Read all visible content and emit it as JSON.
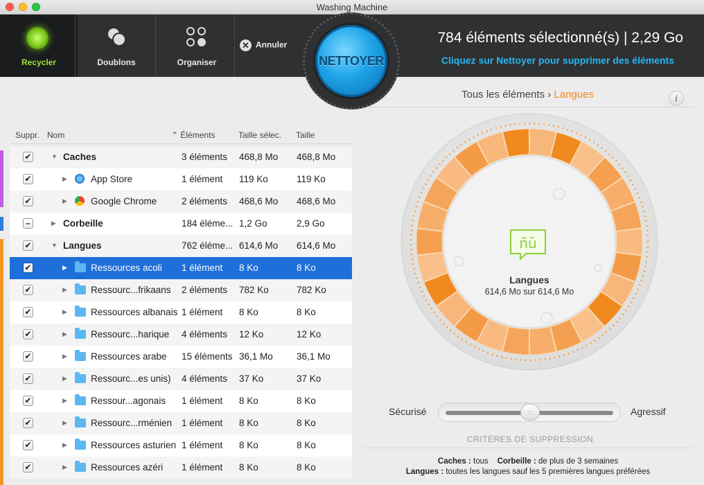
{
  "window": {
    "title": "Washing Machine"
  },
  "toolbar": {
    "recycle_label": "Recycler",
    "duplicates_label": "Doublons",
    "organize_label": "Organiser",
    "cancel_label": "Annuler",
    "clean_label": "NETTOYER"
  },
  "summary": {
    "selected": "784 éléments sélectionné(s) | 2,29 Go",
    "hint": "Cliquez sur Nettoyer pour supprimer des éléments"
  },
  "table": {
    "headers": {
      "delete": "Suppr.",
      "name": "Nom",
      "items": "Éléments",
      "selected_size": "Taille sélec.",
      "size": "Taille"
    },
    "rows": [
      {
        "name": "Caches",
        "items": "3 éléments",
        "sel": "468,8 Mo",
        "size": "468,8 Mo",
        "check": "✔"
      },
      {
        "name": "App Store",
        "items": "1 élément",
        "sel": "119 Ko",
        "size": "119 Ko",
        "check": "✔"
      },
      {
        "name": "Google Chrome",
        "items": "2 éléments",
        "sel": "468,6 Mo",
        "size": "468,6 Mo",
        "check": "✔"
      },
      {
        "name": "Corbeille",
        "items": "184 éléme...",
        "sel": "1,2 Go",
        "size": "2,9 Go",
        "check": "–"
      },
      {
        "name": "Langues",
        "items": "762 éléme...",
        "sel": "614,6 Mo",
        "size": "614,6 Mo",
        "check": "✔"
      },
      {
        "name": "Ressources acoli",
        "items": "1 élément",
        "sel": "8 Ko",
        "size": "8 Ko",
        "check": "✔"
      },
      {
        "name": "Ressourc...frikaans",
        "items": "2 éléments",
        "sel": "782 Ko",
        "size": "782 Ko",
        "check": "✔"
      },
      {
        "name": "Ressources albanais",
        "items": "1 élément",
        "sel": "8 Ko",
        "size": "8 Ko",
        "check": "✔"
      },
      {
        "name": "Ressourc...harique",
        "items": "4 éléments",
        "sel": "12 Ko",
        "size": "12 Ko",
        "check": "✔"
      },
      {
        "name": "Ressources arabe",
        "items": "15 éléments",
        "sel": "36,1 Mo",
        "size": "36,1 Mo",
        "check": "✔"
      },
      {
        "name": "Ressourc...es unis)",
        "items": "4 éléments",
        "sel": "37 Ko",
        "size": "37 Ko",
        "check": "✔"
      },
      {
        "name": "Ressour...agonais",
        "items": "1 élément",
        "sel": "8 Ko",
        "size": "8 Ko",
        "check": "✔"
      },
      {
        "name": "Ressourc...rménien",
        "items": "1 élément",
        "sel": "8 Ko",
        "size": "8 Ko",
        "check": "✔"
      },
      {
        "name": "Ressources asturien",
        "items": "1 élément",
        "sel": "8 Ko",
        "size": "8 Ko",
        "check": "✔"
      },
      {
        "name": "Ressources azéri",
        "items": "1 élément",
        "sel": "8 Ko",
        "size": "8 Ko",
        "check": "✔"
      }
    ]
  },
  "breadcrumb": {
    "root": "Tous les éléments",
    "sep": "›",
    "current": "Langues"
  },
  "info_label": "i",
  "donut": {
    "title": "Langues",
    "value": "614,6 Mo sur 614,6 Mo"
  },
  "slider": {
    "left": "Sécurisé",
    "right": "Agressif",
    "grip": ":::"
  },
  "criteria": {
    "title": "CRITÈRES DE SUPPRESSION",
    "caches_label": "Caches :",
    "caches_value": "tous",
    "trash_label": "Corbeille :",
    "trash_value": "de plus de 3 semaines",
    "langs_label": "Langues :",
    "langs_value": "toutes les langues sauf les 5 premières langues préférées"
  },
  "colors": {
    "accent_orange": "#f08a1f",
    "accent_blue": "#2ab6ef",
    "selection": "#1e6fd9",
    "recycle_green": "#9be036"
  }
}
